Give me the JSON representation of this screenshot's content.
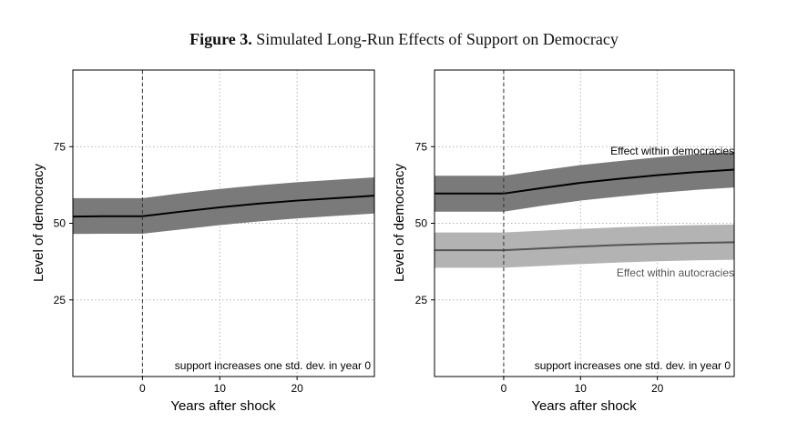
{
  "figure": {
    "number": "Figure 3.",
    "title": "Simulated Long-Run Effects of Support on Democracy"
  },
  "chart_data": [
    {
      "type": "line",
      "xlabel": "Years after shock",
      "ylabel": "Level of democracy",
      "xlim": [
        -9,
        30
      ],
      "ylim": [
        0,
        100
      ],
      "xticks": [
        0,
        10,
        20
      ],
      "yticks": [
        25,
        50,
        75
      ],
      "grid": true,
      "vline_x": 0,
      "annotation": "support increases one std. dev. in year 0",
      "series": [
        {
          "name": "",
          "color": "#000000",
          "band_color": "#7a7a7a",
          "x": [
            -9,
            -5,
            0,
            5,
            10,
            15,
            20,
            25,
            30
          ],
          "y": [
            52.2,
            52.3,
            52.3,
            53.8,
            55.2,
            56.4,
            57.4,
            58.2,
            59.0
          ],
          "lower": [
            46.5,
            46.6,
            46.6,
            48.0,
            49.4,
            50.6,
            51.6,
            52.4,
            53.2
          ],
          "upper": [
            58.2,
            58.2,
            58.2,
            59.8,
            61.2,
            62.4,
            63.4,
            64.2,
            65.0
          ]
        }
      ]
    },
    {
      "type": "line",
      "xlabel": "Years after shock",
      "ylabel": "Level of democracy",
      "xlim": [
        -9,
        30
      ],
      "ylim": [
        0,
        100
      ],
      "xticks": [
        0,
        10,
        20
      ],
      "yticks": [
        25,
        50,
        75
      ],
      "grid": true,
      "vline_x": 0,
      "annotation": "support increases one std. dev. in year 0",
      "series": [
        {
          "name": "Effect within democracies",
          "color": "#000000",
          "band_color": "#7a7a7a",
          "x": [
            -9,
            -5,
            0,
            5,
            10,
            15,
            20,
            25,
            30
          ],
          "y": [
            59.7,
            59.7,
            59.7,
            61.5,
            63.2,
            64.5,
            65.7,
            66.7,
            67.5
          ],
          "lower": [
            53.8,
            53.8,
            53.8,
            55.7,
            57.4,
            58.7,
            59.9,
            60.9,
            61.7
          ],
          "upper": [
            65.5,
            65.5,
            65.5,
            67.3,
            69.0,
            70.3,
            71.5,
            72.5,
            73.3
          ]
        },
        {
          "name": "Effect within autocracies",
          "color": "#555555",
          "band_color": "#b3b3b3",
          "x": [
            -9,
            -5,
            0,
            5,
            10,
            15,
            20,
            25,
            30
          ],
          "y": [
            41.2,
            41.2,
            41.2,
            41.8,
            42.4,
            42.9,
            43.3,
            43.6,
            43.8
          ],
          "lower": [
            35.5,
            35.5,
            35.5,
            36.1,
            36.7,
            37.2,
            37.6,
            37.9,
            38.1
          ],
          "upper": [
            47.0,
            47.0,
            47.0,
            47.6,
            48.2,
            48.7,
            49.1,
            49.4,
            49.6
          ]
        }
      ]
    }
  ]
}
